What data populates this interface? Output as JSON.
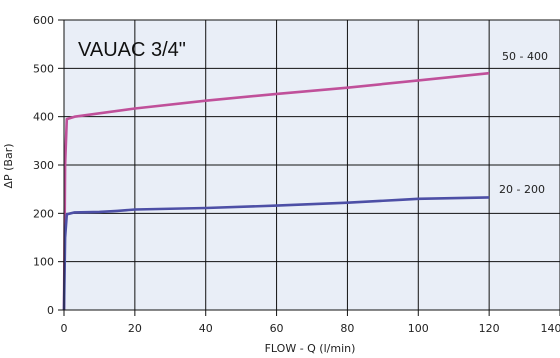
{
  "chart_data": {
    "type": "line",
    "title": "VAUAC 3/4\"",
    "xlabel": "FLOW - Q (l/min)",
    "ylabel": "ΔP (Bar)",
    "xlim": [
      0,
      140
    ],
    "ylim": [
      0,
      600
    ],
    "xticks": [
      0,
      20,
      40,
      60,
      80,
      100,
      120,
      140
    ],
    "yticks": [
      0,
      100,
      200,
      300,
      400,
      500,
      600
    ],
    "grid": true,
    "plot_background": "#e9eef7",
    "series": [
      {
        "name": "50 - 400",
        "color": "#c0509a",
        "points": [
          [
            0,
            0
          ],
          [
            0.3,
            300
          ],
          [
            0.8,
            395
          ],
          [
            3,
            400
          ],
          [
            20,
            417
          ],
          [
            40,
            433
          ],
          [
            60,
            447
          ],
          [
            80,
            460
          ],
          [
            100,
            475
          ],
          [
            120,
            490
          ]
        ]
      },
      {
        "name": "20 - 200",
        "color": "#4d4fa6",
        "points": [
          [
            0,
            0
          ],
          [
            0.3,
            150
          ],
          [
            0.8,
            198
          ],
          [
            3,
            202
          ],
          [
            10,
            203
          ],
          [
            15,
            205
          ],
          [
            20,
            208
          ],
          [
            40,
            211
          ],
          [
            60,
            216
          ],
          [
            80,
            222
          ],
          [
            95,
            228
          ],
          [
            100,
            230
          ],
          [
            120,
            233
          ]
        ]
      }
    ]
  }
}
